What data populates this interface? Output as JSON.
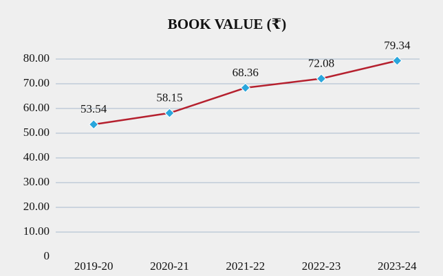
{
  "chart_data": {
    "type": "line",
    "title": "BOOK VALUE (₹)",
    "categories": [
      "2019-20",
      "2020-21",
      "2021-22",
      "2022-23",
      "2023-24"
    ],
    "series": [
      {
        "name": "Book Value",
        "color": "#b5202e",
        "marker_color": "#2aa6dc",
        "values": [
          53.54,
          58.15,
          68.36,
          72.08,
          79.34
        ]
      }
    ],
    "ylim": [
      0,
      80
    ],
    "yticks": [
      0,
      {
        "value": 10,
        "label": "10.00"
      },
      {
        "value": 20,
        "label": "20.00"
      },
      {
        "value": 30,
        "label": "30.00"
      },
      {
        "value": 40,
        "label": "40.00"
      },
      {
        "value": 50,
        "label": "50.00"
      },
      {
        "value": 60,
        "label": "60.00"
      },
      {
        "value": 70,
        "label": "70.00"
      },
      {
        "value": 80,
        "label": "80.00"
      }
    ],
    "grid": true
  }
}
